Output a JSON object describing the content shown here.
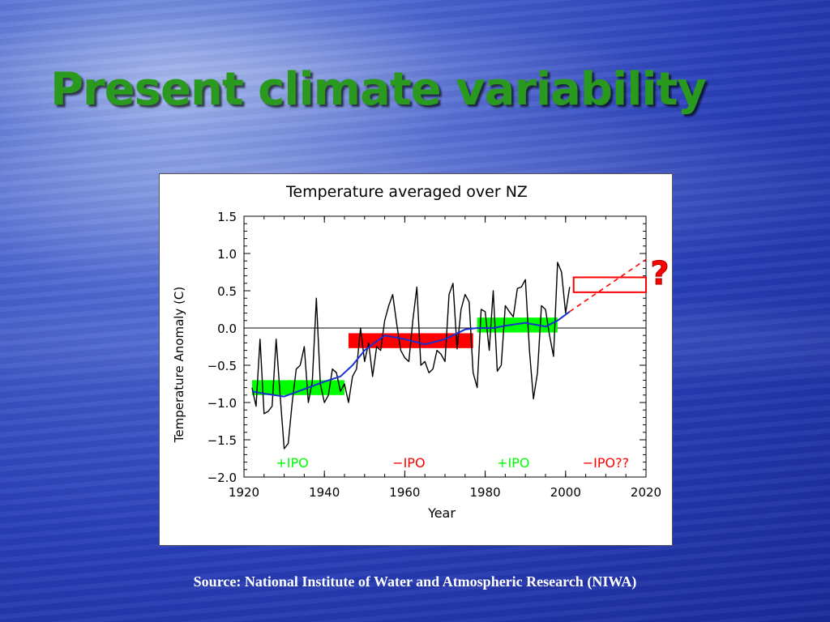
{
  "slide": {
    "title": "Present climate variability",
    "source": "Source: National Institute of Water and Atmospheric Research (NIWA)"
  },
  "chart_data": {
    "type": "line",
    "title": "Temperature averaged over NZ",
    "xlabel": "Year",
    "ylabel": "Temperature Anomaly (C)",
    "xlim": [
      1920,
      2020
    ],
    "ylim": [
      -2.0,
      1.5
    ],
    "xticks": [
      1920,
      1940,
      1960,
      1980,
      2000,
      2020
    ],
    "yticks": [
      -2.0,
      -1.5,
      -1.0,
      -0.5,
      0.0,
      0.5,
      1.0,
      1.5
    ],
    "ytick_labels": [
      "−2.0",
      "−1.5",
      "−1.0",
      "−0.5",
      "0.0",
      "0.5",
      "1.0",
      "1.5"
    ],
    "zero_line": 0,
    "series": [
      {
        "color": "#000000",
        "x": [
          1922,
          1923,
          1924,
          1925,
          1926,
          1927,
          1928,
          1929,
          1930,
          1931,
          1932,
          1933,
          1934,
          1935,
          1936,
          1937,
          1938,
          1939,
          1940,
          1941,
          1942,
          1943,
          1944,
          1945,
          1946,
          1947,
          1948,
          1949,
          1950,
          1951,
          1952,
          1953,
          1954,
          1955,
          1956,
          1957,
          1958,
          1959,
          1960,
          1961,
          1962,
          1963,
          1964,
          1965,
          1966,
          1967,
          1968,
          1969,
          1970,
          1971,
          1972,
          1973,
          1974,
          1975,
          1976,
          1977,
          1978,
          1979,
          1980,
          1981,
          1982,
          1983,
          1984,
          1985,
          1986,
          1987,
          1988,
          1989,
          1990,
          1991,
          1992,
          1993,
          1994,
          1995,
          1996,
          1997,
          1998,
          1999,
          2000,
          2001
        ],
        "y": [
          -0.8,
          -1.05,
          -0.15,
          -1.15,
          -1.12,
          -1.05,
          -0.15,
          -0.9,
          -1.62,
          -1.55,
          -1.0,
          -0.55,
          -0.5,
          -0.25,
          -1.0,
          -0.72,
          0.4,
          -0.75,
          -1.0,
          -0.9,
          -0.55,
          -0.6,
          -0.85,
          -0.75,
          -1.0,
          -0.65,
          -0.55,
          0.0,
          -0.45,
          -0.2,
          -0.65,
          -0.25,
          -0.3,
          0.1,
          0.3,
          0.45,
          0.05,
          -0.3,
          -0.4,
          -0.45,
          0.1,
          0.55,
          -0.5,
          -0.45,
          -0.6,
          -0.55,
          -0.3,
          -0.35,
          -0.45,
          0.45,
          0.6,
          -0.28,
          0.25,
          0.45,
          0.35,
          -0.6,
          -0.8,
          0.25,
          0.22,
          -0.3,
          0.5,
          -0.58,
          -0.5,
          0.3,
          0.22,
          0.15,
          0.53,
          0.55,
          0.65,
          -0.3,
          -0.95,
          -0.6,
          0.3,
          0.25,
          -0.1,
          -0.38,
          0.88,
          0.75,
          0.2,
          0.55
        ]
      },
      {
        "color": "#1a2fd0",
        "x": [
          1922,
          1925,
          1930,
          1935,
          1940,
          1944,
          1947,
          1950,
          1955,
          1960,
          1965,
          1970,
          1975,
          1978,
          1982,
          1985,
          1990,
          1995,
          1998,
          2001
        ],
        "y": [
          -0.85,
          -0.88,
          -0.92,
          -0.82,
          -0.72,
          -0.65,
          -0.5,
          -0.3,
          -0.1,
          -0.15,
          -0.22,
          -0.15,
          -0.02,
          0.0,
          0.0,
          0.03,
          0.07,
          0.02,
          0.1,
          0.22
        ]
      }
    ],
    "phases": [
      {
        "label": "+IPO",
        "color": "#00ff00",
        "x_start": 1922,
        "x_end": 1945,
        "y_low": -0.9,
        "y_high": -0.7,
        "filled": true,
        "label_x": 1932
      },
      {
        "label": "−IPO",
        "color": "#ff0000",
        "x_start": 1946,
        "x_end": 1977,
        "y_low": -0.27,
        "y_high": -0.07,
        "filled": true,
        "label_x": 1961
      },
      {
        "label": "+IPO",
        "color": "#00ff00",
        "x_start": 1978,
        "x_end": 1998,
        "y_low": -0.06,
        "y_high": 0.14,
        "filled": true,
        "label_x": 1987
      },
      {
        "label": "−IPO??",
        "color": "#ff0000",
        "x_start": 2002,
        "x_end": 2020,
        "y_low": 0.48,
        "y_high": 0.68,
        "filled": false,
        "label_x": 2010
      }
    ],
    "projection": {
      "color": "#ff0000",
      "x": [
        2001,
        2020
      ],
      "y": [
        0.22,
        0.92
      ],
      "dashed": true
    },
    "question_mark": "?"
  }
}
